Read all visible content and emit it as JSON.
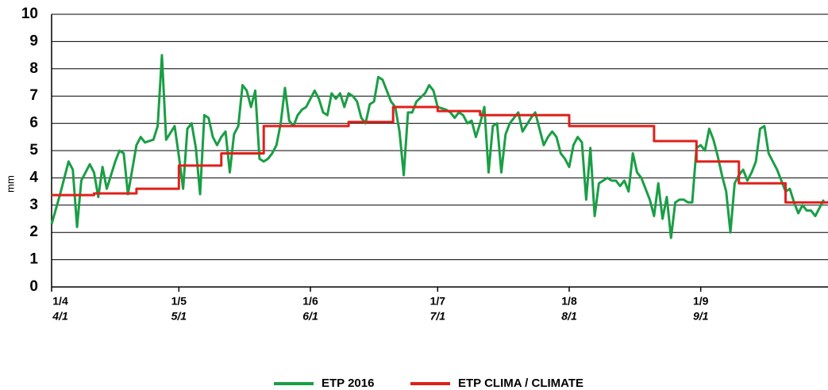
{
  "chart_data": {
    "type": "line",
    "y_label": "mm",
    "xlim": [
      0,
      183
    ],
    "xticks": [
      {
        "value": 0,
        "label": [
          "1/4",
          "4/1"
        ]
      },
      {
        "value": 30,
        "label": [
          "1/5",
          "5/1"
        ]
      },
      {
        "value": 61,
        "label": [
          "1/6",
          "6/1"
        ]
      },
      {
        "value": 91,
        "label": [
          "1/7",
          "7/1"
        ]
      },
      {
        "value": 122,
        "label": [
          "1/8",
          "8/1"
        ]
      },
      {
        "value": 153,
        "label": [
          "1/9",
          "9/1"
        ]
      }
    ],
    "ylim": [
      0,
      10
    ],
    "yticks": [
      0,
      1,
      2,
      3,
      4,
      5,
      6,
      7,
      8,
      9,
      10
    ],
    "grid": true,
    "legend": "bottom",
    "series": [
      {
        "name": "ETP 2016",
        "color": "#1a9e45",
        "x": [
          0,
          2,
          4,
          5,
          6,
          7,
          9,
          10,
          11,
          12,
          13,
          15,
          16,
          17,
          18,
          19,
          20,
          21,
          22,
          24,
          25,
          26,
          27,
          29,
          30,
          31,
          32,
          33,
          34,
          35,
          36,
          37,
          38,
          39,
          40,
          41,
          42,
          43,
          44,
          45,
          46,
          47,
          48,
          49,
          50,
          51,
          52,
          53,
          54,
          55,
          56,
          57,
          58,
          59,
          60,
          61,
          62,
          63,
          64,
          65,
          66,
          67,
          68,
          69,
          70,
          71,
          72,
          73,
          74,
          75,
          76,
          77,
          78,
          79,
          80,
          81,
          82,
          83,
          84,
          85,
          86,
          88,
          89,
          90,
          91,
          93,
          94,
          95,
          96,
          97,
          98,
          99,
          100,
          101,
          102,
          103,
          104,
          105,
          106,
          107,
          108,
          110,
          111,
          113,
          114,
          115,
          116,
          117,
          118,
          119,
          120,
          121,
          122,
          123,
          124,
          125,
          126,
          127,
          128,
          129,
          130,
          131,
          132,
          133,
          134,
          135,
          136,
          137,
          138,
          139,
          140,
          141,
          142,
          143,
          144,
          145,
          146,
          147,
          148,
          149,
          150,
          151,
          152,
          153,
          154,
          155,
          156,
          157,
          158,
          159,
          160,
          161,
          162,
          163,
          164,
          165,
          166,
          167,
          168,
          169,
          170,
          171,
          172,
          173,
          174,
          175,
          176,
          177,
          178,
          179,
          180,
          182
        ],
        "values": [
          2.3,
          3.4,
          4.6,
          4.3,
          2.2,
          3.9,
          4.5,
          4.2,
          3.3,
          4.4,
          3.6,
          4.6,
          5.0,
          4.9,
          3.4,
          4.3,
          5.2,
          5.5,
          5.3,
          5.4,
          5.9,
          8.5,
          5.4,
          5.9,
          4.8,
          3.6,
          5.8,
          6.0,
          5.1,
          3.4,
          6.3,
          6.2,
          5.5,
          5.2,
          5.5,
          5.7,
          4.2,
          5.6,
          5.9,
          7.4,
          7.2,
          6.6,
          7.2,
          4.7,
          4.6,
          4.7,
          4.9,
          5.2,
          6.0,
          7.3,
          6.1,
          5.9,
          6.3,
          6.5,
          6.6,
          6.9,
          7.2,
          6.9,
          6.4,
          6.3,
          7.1,
          6.9,
          7.1,
          6.6,
          7.1,
          7.0,
          6.8,
          6.2,
          6.0,
          6.7,
          6.8,
          7.7,
          7.6,
          7.2,
          6.8,
          6.6,
          5.7,
          4.1,
          6.4,
          6.4,
          6.8,
          7.1,
          7.4,
          7.2,
          6.6,
          6.5,
          6.4,
          6.2,
          6.4,
          6.3,
          6.0,
          6.1,
          5.5,
          6.0,
          6.6,
          4.2,
          5.9,
          6.0,
          4.2,
          5.6,
          6.0,
          6.4,
          5.7,
          6.2,
          6.4,
          5.8,
          5.2,
          5.5,
          5.7,
          5.5,
          4.9,
          4.7,
          4.4,
          5.2,
          5.5,
          5.3,
          3.2,
          5.1,
          2.6,
          3.8,
          3.9,
          4.0,
          3.9,
          3.9,
          3.7,
          3.9,
          3.5,
          4.9,
          4.2,
          4.0,
          3.6,
          3.2,
          2.6,
          3.8,
          2.5,
          3.3,
          1.8,
          3.1,
          3.2,
          3.2,
          3.1,
          3.1,
          5.1,
          5.2,
          5.0,
          5.8,
          5.4,
          4.8,
          4.1,
          3.5,
          2.0,
          3.8,
          4.1,
          4.3,
          3.9,
          4.2,
          4.6,
          5.8,
          5.9,
          4.9,
          4.6,
          4.3,
          3.9,
          3.5,
          3.6,
          3.1,
          2.7,
          3.0,
          2.8,
          2.8,
          2.6,
          3.2
        ]
      },
      {
        "name": "ETP CLIMA / CLIMATE",
        "color": "#e0201b",
        "x": [
          0,
          10,
          10,
          20,
          20,
          30,
          30,
          40,
          40,
          50,
          50,
          70,
          70,
          80.5,
          80.5,
          91,
          91,
          101,
          101,
          122,
          122,
          142,
          142,
          152,
          152,
          162,
          162,
          173,
          173,
          183
        ],
        "values": [
          3.37,
          3.37,
          3.43,
          3.43,
          3.6,
          3.6,
          4.45,
          4.45,
          4.9,
          4.9,
          5.9,
          5.9,
          6.05,
          6.05,
          6.6,
          6.6,
          6.45,
          6.45,
          6.3,
          6.3,
          5.9,
          5.9,
          5.35,
          5.35,
          4.6,
          4.6,
          3.8,
          3.8,
          3.1,
          3.1
        ]
      }
    ]
  }
}
